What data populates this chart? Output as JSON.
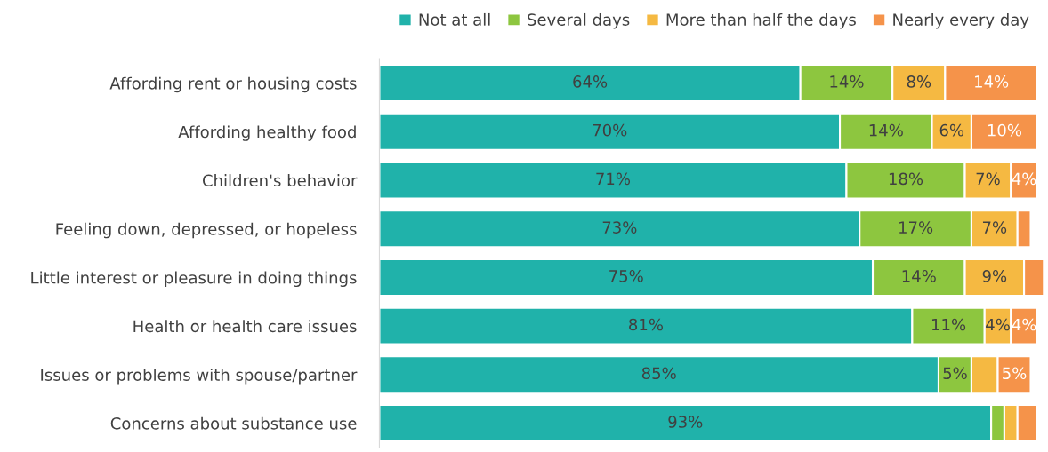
{
  "chart_data": {
    "type": "bar",
    "orientation": "horizontal",
    "stacked": true,
    "legend": "top right",
    "categories": [
      "Affording rent or housing costs",
      "Affording healthy food",
      "Children's behavior",
      "Feeling down, depressed, or hopeless",
      "Little interest or pleasure in doing things",
      "Health or health care issues",
      "Issues or problems with spouse/partner",
      "Concerns about substance use"
    ],
    "series": [
      {
        "name": "Not at all",
        "color": "#20b2aa",
        "values": [
          64,
          70,
          71,
          73,
          75,
          81,
          85,
          93
        ],
        "value_labels": [
          "64%",
          "70%",
          "71%",
          "73%",
          "75%",
          "81%",
          "85%",
          "93%"
        ]
      },
      {
        "name": "Several days",
        "color": "#8dc63f",
        "values": [
          14,
          14,
          18,
          17,
          14,
          11,
          5,
          2
        ],
        "value_labels": [
          "14%",
          "14%",
          "18%",
          "17%",
          "14%",
          "11%",
          "5%",
          null
        ]
      },
      {
        "name": "More than half the days",
        "color": "#f5b942",
        "values": [
          8,
          6,
          7,
          7,
          9,
          4,
          4,
          2
        ],
        "value_labels": [
          "8%",
          "6%",
          "7%",
          "7%",
          "9%",
          "4%",
          null,
          null
        ]
      },
      {
        "name": "Nearly every day",
        "color": "#f5934a",
        "values": [
          14,
          10,
          4,
          2,
          3,
          4,
          5,
          3
        ],
        "value_labels": [
          "14%",
          "10%",
          "4%",
          null,
          null,
          "4%",
          "5%",
          null
        ]
      }
    ]
  }
}
